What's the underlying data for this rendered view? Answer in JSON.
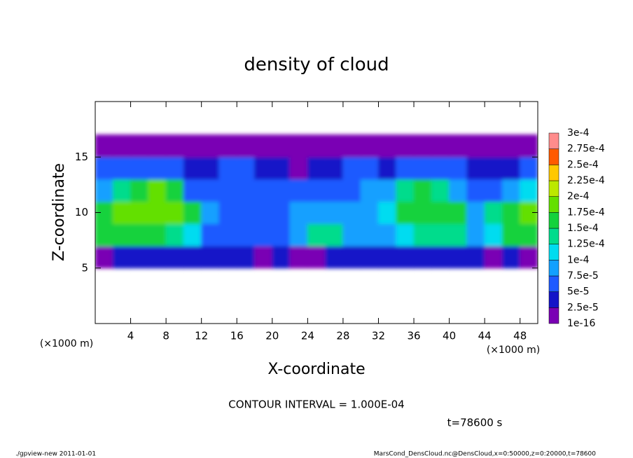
{
  "chart_data": {
    "type": "heatmap",
    "title": "density of cloud",
    "x_label": "X-coordinate",
    "y_label": "Z-coordinate",
    "x_unit_left": "(×1000 m)",
    "x_unit_right": "(×1000 m)",
    "contour_note": "CONTOUR INTERVAL = 1.000E-04",
    "time_label": "t=78600 s",
    "footer_left": "./gpview-new  2011-01-01",
    "footer_right": "MarsCond_DensCloud.nc@DensCloud,x=0:50000,z=0:20000,t=78600",
    "xlim": [
      0,
      50
    ],
    "xticks": [
      4,
      8,
      12,
      16,
      20,
      24,
      28,
      32,
      36,
      40,
      44,
      48
    ],
    "ylim": [
      0,
      20
    ],
    "yticks": [
      5,
      10,
      15
    ],
    "x": [
      1,
      3,
      5,
      7,
      9,
      11,
      13,
      15,
      17,
      19,
      21,
      23,
      25,
      27,
      29,
      31,
      33,
      35,
      37,
      39,
      41,
      43,
      45,
      47,
      49
    ],
    "y": [
      6,
      8,
      10,
      12,
      14,
      16
    ],
    "values": [
      [
        2e-05,
        3e-05,
        3e-05,
        3e-05,
        3e-05,
        4e-05,
        3e-05,
        3e-05,
        3e-05,
        2e-05,
        3e-05,
        1e-05,
        2e-05,
        3e-05,
        4e-05,
        3e-05,
        3e-05,
        3e-05,
        4e-05,
        3e-05,
        3e-05,
        3e-05,
        2e-05,
        3e-05,
        2e-05
      ],
      [
        0.00016,
        0.00016,
        0.00015,
        0.00016,
        0.00014,
        0.00012,
        7e-05,
        7e-05,
        6e-05,
        7e-05,
        7e-05,
        9e-05,
        0.00013,
        0.00013,
        9e-05,
        9e-05,
        8e-05,
        0.00011,
        0.00013,
        0.00014,
        0.00013,
        9e-05,
        0.00012,
        0.00015,
        0.00016
      ],
      [
        0.00017,
        0.00018,
        0.00018,
        0.00019,
        0.00018,
        0.00016,
        8e-05,
        6e-05,
        6e-05,
        6e-05,
        6e-05,
        8e-05,
        8e-05,
        9e-05,
        8e-05,
        9e-05,
        0.00011,
        0.00016,
        0.00017,
        0.00017,
        0.00015,
        8e-05,
        0.00013,
        0.00017,
        0.00018
      ],
      [
        9e-05,
        0.00013,
        0.00017,
        0.00018,
        0.00016,
        7e-05,
        5e-05,
        5e-05,
        5e-05,
        6e-05,
        6e-05,
        6e-05,
        5e-05,
        5e-05,
        6e-05,
        8e-05,
        9e-05,
        0.00014,
        0.00015,
        0.00013,
        9e-05,
        6e-05,
        6e-05,
        8e-05,
        0.00012
      ],
      [
        5e-05,
        5e-05,
        5e-05,
        6e-05,
        6e-05,
        4e-05,
        4e-05,
        5e-05,
        5e-05,
        4e-05,
        3e-05,
        2e-05,
        3e-05,
        4e-05,
        5e-05,
        5e-05,
        4e-05,
        6e-05,
        5e-05,
        5e-05,
        5e-05,
        4e-05,
        4e-05,
        4e-05,
        5e-05
      ],
      [
        1e-05,
        1e-05,
        1e-05,
        2e-05,
        1e-05,
        1e-05,
        2e-05,
        1e-05,
        1e-05,
        1e-05,
        2e-05,
        1e-05,
        1e-05,
        1e-05,
        1e-05,
        1e-05,
        1e-05,
        1e-05,
        1e-05,
        1e-05,
        1e-05,
        1e-05,
        1e-05,
        2e-05,
        1e-05
      ]
    ],
    "levels": [
      {
        "value": 1e-16,
        "label": "1e-16"
      },
      {
        "value": 2.5e-05,
        "label": "2.5e-5"
      },
      {
        "value": 5e-05,
        "label": "5e-5"
      },
      {
        "value": 7.5e-05,
        "label": "7.5e-5"
      },
      {
        "value": 0.0001,
        "label": "1e-4"
      },
      {
        "value": 0.000125,
        "label": "1.25e-4"
      },
      {
        "value": 0.00015,
        "label": "1.5e-4"
      },
      {
        "value": 0.000175,
        "label": "1.75e-4"
      },
      {
        "value": 0.0002,
        "label": "2e-4"
      },
      {
        "value": 0.000225,
        "label": "2.25e-4"
      },
      {
        "value": 0.00025,
        "label": "2.5e-4"
      },
      {
        "value": 0.000275,
        "label": "2.75e-4"
      },
      {
        "value": 0.0003,
        "label": "3e-4"
      }
    ],
    "colors": [
      "#7a00b4",
      "#1414c8",
      "#1e5aff",
      "#12a0ff",
      "#00dcf0",
      "#00dc8c",
      "#14d23c",
      "#64e000",
      "#bce800",
      "#ffc800",
      "#ff5a00",
      "#ff8c8c"
    ]
  }
}
